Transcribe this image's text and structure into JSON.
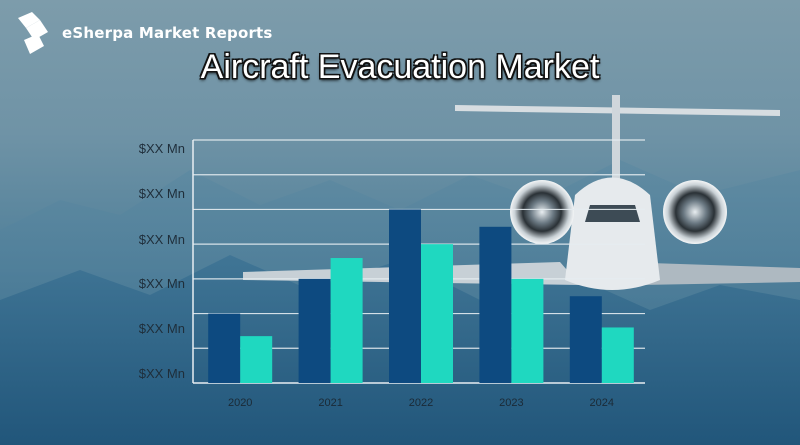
{
  "brand": {
    "name": "eSherpa Market Reports",
    "logo_icon": "esherpa-logo-icon"
  },
  "chart_data": {
    "type": "bar",
    "title": "Aircraft Evacuation Market",
    "categories": [
      "2020",
      "2021",
      "2022",
      "2023",
      "2024"
    ],
    "series": [
      {
        "color": "#0d4a80",
        "values": [
          2.0,
          3.0,
          5.0,
          4.5,
          2.5
        ]
      },
      {
        "color": "#1fd8c0",
        "values": [
          1.35,
          3.6,
          4.0,
          3.0,
          1.6
        ]
      }
    ],
    "y_tick_labels": [
      "$XX Mn",
      "$XX Mn",
      "$XX Mn",
      "$XX Mn",
      "$XX Mn",
      "$XX Mn"
    ],
    "ylim": [
      0,
      7
    ],
    "grid": true,
    "xlabel": "",
    "ylabel": ""
  }
}
